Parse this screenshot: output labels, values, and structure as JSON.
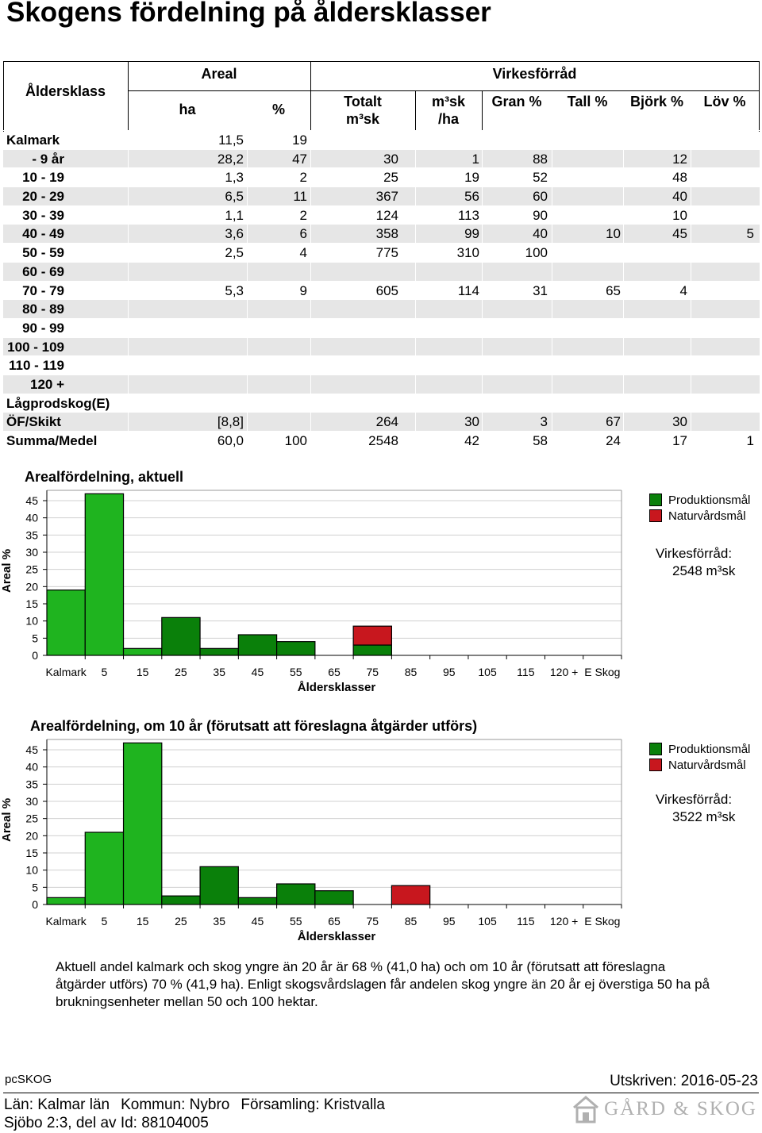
{
  "title": "Skogens fördelning på åldersklasser",
  "table": {
    "headers": {
      "alderklass": "Åldersklass",
      "areal": "Areal",
      "ha": "ha",
      "pct": "%",
      "virkesforrad": "Virkesförråd",
      "totalt": "Totalt",
      "totalt_unit": "m³sk",
      "m3sk": "m³sk",
      "per_ha": "/ha",
      "gran": "Gran %",
      "tall": "Tall %",
      "bjork": "Björk %",
      "lov": "Löv %"
    },
    "rows": [
      {
        "label": "Kalmark",
        "ha": "11,5",
        "pct": "19",
        "totalt": "",
        "m3ha": "",
        "gran": "",
        "tall": "",
        "bjork": "",
        "lov": ""
      },
      {
        "label": "- 9 år",
        "ha": "28,2",
        "pct": "47",
        "totalt": "30",
        "m3ha": "1",
        "gran": "88",
        "tall": "",
        "bjork": "12",
        "lov": ""
      },
      {
        "label": "10 - 19",
        "ha": "1,3",
        "pct": "2",
        "totalt": "25",
        "m3ha": "19",
        "gran": "52",
        "tall": "",
        "bjork": "48",
        "lov": ""
      },
      {
        "label": "20 - 29",
        "ha": "6,5",
        "pct": "11",
        "totalt": "367",
        "m3ha": "56",
        "gran": "60",
        "tall": "",
        "bjork": "40",
        "lov": ""
      },
      {
        "label": "30 - 39",
        "ha": "1,1",
        "pct": "2",
        "totalt": "124",
        "m3ha": "113",
        "gran": "90",
        "tall": "",
        "bjork": "10",
        "lov": ""
      },
      {
        "label": "40 - 49",
        "ha": "3,6",
        "pct": "6",
        "totalt": "358",
        "m3ha": "99",
        "gran": "40",
        "tall": "10",
        "bjork": "45",
        "lov": "5"
      },
      {
        "label": "50 - 59",
        "ha": "2,5",
        "pct": "4",
        "totalt": "775",
        "m3ha": "310",
        "gran": "100",
        "tall": "",
        "bjork": "",
        "lov": ""
      },
      {
        "label": "60 - 69",
        "ha": "",
        "pct": "",
        "totalt": "",
        "m3ha": "",
        "gran": "",
        "tall": "",
        "bjork": "",
        "lov": ""
      },
      {
        "label": "70 - 79",
        "ha": "5,3",
        "pct": "9",
        "totalt": "605",
        "m3ha": "114",
        "gran": "31",
        "tall": "65",
        "bjork": "4",
        "lov": ""
      },
      {
        "label": "80 - 89",
        "ha": "",
        "pct": "",
        "totalt": "",
        "m3ha": "",
        "gran": "",
        "tall": "",
        "bjork": "",
        "lov": ""
      },
      {
        "label": "90 - 99",
        "ha": "",
        "pct": "",
        "totalt": "",
        "m3ha": "",
        "gran": "",
        "tall": "",
        "bjork": "",
        "lov": ""
      },
      {
        "label": "100 - 109",
        "ha": "",
        "pct": "",
        "totalt": "",
        "m3ha": "",
        "gran": "",
        "tall": "",
        "bjork": "",
        "lov": ""
      },
      {
        "label": "110 - 119",
        "ha": "",
        "pct": "",
        "totalt": "",
        "m3ha": "",
        "gran": "",
        "tall": "",
        "bjork": "",
        "lov": ""
      },
      {
        "label": "120 +",
        "ha": "",
        "pct": "",
        "totalt": "",
        "m3ha": "",
        "gran": "",
        "tall": "",
        "bjork": "",
        "lov": ""
      },
      {
        "label": "Lågprodskog(E)",
        "ha": "",
        "pct": "",
        "totalt": "",
        "m3ha": "",
        "gran": "",
        "tall": "",
        "bjork": "",
        "lov": ""
      },
      {
        "label": "ÖF/Skikt",
        "ha": "[8,8]",
        "pct": "",
        "totalt": "264",
        "m3ha": "30",
        "gran": "3",
        "tall": "67",
        "bjork": "30",
        "lov": ""
      },
      {
        "label": "Summa/Medel",
        "ha": "60,0",
        "pct": "100",
        "totalt": "2548",
        "m3ha": "42",
        "gran": "58",
        "tall": "24",
        "bjork": "17",
        "lov": "1"
      }
    ]
  },
  "chart_data": [
    {
      "type": "bar",
      "title": "Arealfördelning, aktuell",
      "ylabel": "Areal %",
      "xlabel": "Åldersklasser",
      "ylim": [
        0,
        48
      ],
      "yticks": [
        "0",
        "5",
        "10",
        "15",
        "20",
        "25",
        "30",
        "35",
        "40",
        "45"
      ],
      "xticks": [
        "Kalmark",
        "5",
        "15",
        "25",
        "35",
        "45",
        "55",
        "65",
        "75",
        "85",
        "95",
        "105",
        "115",
        "120 +",
        "E Skog"
      ],
      "series": [
        {
          "name": "Produktionsmål",
          "color": "#1fb41f",
          "values": [
            19,
            47,
            2,
            11,
            2,
            6,
            4,
            0,
            3,
            0,
            0,
            0,
            0,
            0,
            0
          ]
        },
        {
          "name": "Naturvårdsmål",
          "color": "#c8171e",
          "values": [
            0,
            0,
            0,
            0,
            0,
            0,
            0,
            0,
            5.5,
            0,
            0,
            0,
            0,
            0,
            0
          ]
        }
      ],
      "dark_indices": [
        3,
        4,
        5,
        6,
        8
      ],
      "legend_position": "right",
      "virkesforrad_label": "Virkesförråd:",
      "virkesforrad_value": "2548 m³sk"
    },
    {
      "type": "bar",
      "title": "Arealfördelning, om 10 år (förutsatt att föreslagna åtgärder utförs)",
      "ylabel": "Areal %",
      "xlabel": "Åldersklasser",
      "ylim": [
        0,
        48
      ],
      "yticks": [
        "0",
        "5",
        "10",
        "15",
        "20",
        "25",
        "30",
        "35",
        "40",
        "45"
      ],
      "xticks": [
        "Kalmark",
        "5",
        "15",
        "25",
        "35",
        "45",
        "55",
        "65",
        "75",
        "85",
        "95",
        "105",
        "115",
        "120 +",
        "E Skog"
      ],
      "series": [
        {
          "name": "Produktionsmål",
          "color": "#1fb41f",
          "values": [
            2,
            21,
            47,
            2.5,
            11,
            2,
            6,
            4,
            0,
            0,
            0,
            0,
            0,
            0,
            0
          ]
        },
        {
          "name": "Naturvårdsmål",
          "color": "#c8171e",
          "values": [
            0,
            0,
            0,
            0,
            0,
            0,
            0,
            0,
            0,
            5.5,
            0,
            0,
            0,
            0,
            0
          ]
        }
      ],
      "dark_indices": [
        3,
        4,
        5,
        6,
        7
      ],
      "legend_position": "right",
      "virkesforrad_label": "Virkesförråd:",
      "virkesforrad_value": "3522 m³sk"
    }
  ],
  "legend": {
    "prod": "Produktionsmål",
    "natur": "Naturvårdsmål"
  },
  "note": "Aktuell andel kalmark och skog yngre än 20 år är 68 % (41,0 ha) och om 10 år (förutsatt att föreslagna åtgärder utförs) 70 % (41,9 ha). Enligt skogsvårdslagen får andelen skog yngre än 20 år ej överstiga 50 ha på brukningsenheter mellan 50 och 100 hektar.",
  "footer": {
    "brand": "pcSKOG",
    "printed": "Utskriven: 2016-05-23",
    "lan": "Län: Kalmar län",
    "kommun": "Kommun: Nybro",
    "forsamling": "Församling: Kristvalla",
    "fastighet": "Sjöbo 2:3, del av Id: 88104005",
    "logo_text": "GÅRD & SKOG"
  },
  "colors": {
    "light_green": "#1fb41f",
    "dark_green": "#0a800a",
    "red": "#c8171e"
  }
}
